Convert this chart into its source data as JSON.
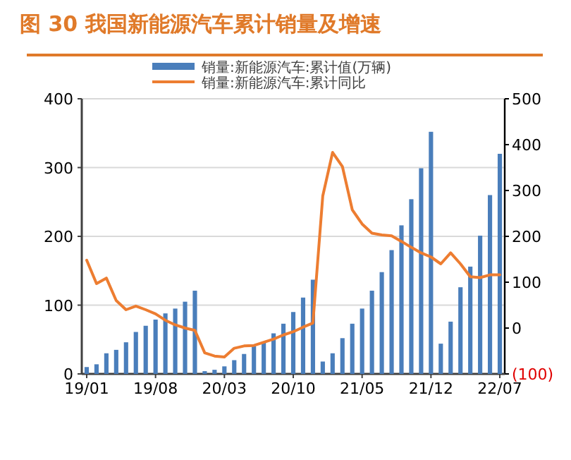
{
  "chart_data": {
    "type": "bar",
    "title": "图 30 我国新能源汽车累计销量及增速",
    "categories": [
      "19/01",
      null,
      null,
      null,
      null,
      null,
      null,
      "19/08",
      null,
      null,
      null,
      null,
      null,
      null,
      "20/03",
      null,
      null,
      null,
      null,
      null,
      null,
      "20/10",
      null,
      null,
      null,
      null,
      null,
      null,
      "21/05",
      null,
      null,
      null,
      null,
      null,
      null,
      "21/12",
      null,
      null,
      null,
      null,
      null,
      null,
      "22/07"
    ],
    "series": [
      {
        "name": "销量:新能源汽车:累计值(万辆)",
        "color": "#4a7ebb",
        "values": [
          10,
          14,
          30,
          35,
          46,
          61,
          70,
          79,
          88,
          95,
          105,
          121,
          4,
          6,
          11,
          20,
          29,
          40,
          47,
          59,
          73,
          90,
          111,
          137,
          18,
          30,
          52,
          73,
          95,
          121,
          148,
          180,
          216,
          254,
          299,
          352,
          44,
          76,
          126,
          156,
          201,
          260,
          320
        ]
      },
      {
        "name": "销量:新能源汽车:累计同比",
        "type": "line",
        "axis": "y2",
        "color": "#ed7d31",
        "values": [
          148,
          97,
          109,
          60,
          40,
          48,
          40,
          31,
          17,
          7,
          0,
          -5,
          -54,
          -61,
          -63,
          -44,
          -39,
          -38,
          -31,
          -24,
          -15,
          -8,
          2,
          11,
          288,
          383,
          352,
          258,
          227,
          207,
          203,
          201,
          189,
          176,
          164,
          155,
          140,
          164,
          140,
          112,
          110,
          116,
          116
        ]
      }
    ],
    "ylim": [
      0,
      400
    ],
    "yticks": [
      0,
      100,
      200,
      300,
      400
    ],
    "y2lim": [
      -100,
      500
    ],
    "y2ticks": [
      {
        "value": -100,
        "label": "(100)"
      },
      0,
      100,
      200,
      300,
      400,
      500
    ],
    "grid": "y",
    "legend": "top",
    "marker": "none"
  }
}
